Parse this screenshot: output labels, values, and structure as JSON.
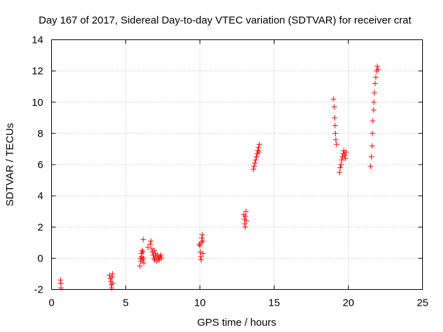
{
  "chart_data": {
    "type": "scatter",
    "title": "Day 167 of 2017, Sidereal Day-to-day VTEC variation (SDTVAR) for receiver crat",
    "xlabel": "GPS time / hours",
    "ylabel": "SDTVAR / TECUs",
    "xlim": [
      0,
      25
    ],
    "ylim": [
      -2,
      14
    ],
    "xticks": [
      0,
      5,
      10,
      15,
      20,
      25
    ],
    "yticks": [
      -2,
      0,
      2,
      4,
      6,
      8,
      10,
      12,
      14
    ],
    "xtick_labels": [
      "0",
      "5",
      "10",
      "15",
      "20",
      "25"
    ],
    "ytick_labels": [
      "-2",
      "0",
      "2",
      "4",
      "6",
      "8",
      "10",
      "12",
      "14"
    ],
    "grid": true,
    "marker": "+",
    "color": "#ff0000",
    "series": [
      {
        "name": "SDTVAR",
        "points": [
          [
            0.6,
            -1.4
          ],
          [
            0.62,
            -1.6
          ],
          [
            0.64,
            -1.9
          ],
          [
            3.9,
            -1.1
          ],
          [
            3.95,
            -1.3
          ],
          [
            4.0,
            -1.5
          ],
          [
            4.02,
            -1.7
          ],
          [
            4.05,
            -1.9
          ],
          [
            4.08,
            -1.2
          ],
          [
            4.1,
            -1.0
          ],
          [
            4.12,
            -1.6
          ],
          [
            5.95,
            -0.5
          ],
          [
            6.0,
            0.0
          ],
          [
            6.02,
            -0.2
          ],
          [
            6.05,
            0.3
          ],
          [
            6.07,
            0.1
          ],
          [
            6.1,
            0.5
          ],
          [
            6.12,
            -0.1
          ],
          [
            6.15,
            0.4
          ],
          [
            6.18,
            1.2
          ],
          [
            6.2,
            0.0
          ],
          [
            6.22,
            -0.3
          ],
          [
            6.5,
            0.7
          ],
          [
            6.65,
            0.9
          ],
          [
            6.7,
            1.1
          ],
          [
            6.75,
            0.6
          ],
          [
            6.8,
            0.4
          ],
          [
            6.85,
            0.2
          ],
          [
            6.9,
            0.0
          ],
          [
            6.92,
            0.5
          ],
          [
            6.95,
            -0.1
          ],
          [
            7.0,
            0.3
          ],
          [
            7.05,
            0.1
          ],
          [
            7.1,
            -0.2
          ],
          [
            7.15,
            0.2
          ],
          [
            7.2,
            0.0
          ],
          [
            7.25,
            -0.1
          ],
          [
            7.3,
            0.1
          ],
          [
            7.35,
            0.2
          ],
          [
            7.4,
            0.0
          ],
          [
            9.95,
            0.9
          ],
          [
            10.0,
            0.8
          ],
          [
            10.02,
            0.4
          ],
          [
            10.05,
            0.1
          ],
          [
            10.08,
            -0.1
          ],
          [
            10.1,
            1.0
          ],
          [
            10.12,
            1.3
          ],
          [
            10.15,
            1.5
          ],
          [
            10.18,
            1.1
          ],
          [
            10.2,
            0.3
          ],
          [
            12.95,
            2.8
          ],
          [
            13.0,
            2.5
          ],
          [
            13.02,
            2.2
          ],
          [
            13.05,
            2.0
          ],
          [
            13.07,
            2.7
          ],
          [
            13.1,
            3.0
          ],
          [
            13.12,
            2.4
          ],
          [
            13.6,
            5.7
          ],
          [
            13.65,
            5.9
          ],
          [
            13.7,
            6.1
          ],
          [
            13.75,
            6.3
          ],
          [
            13.8,
            6.5
          ],
          [
            13.85,
            6.7
          ],
          [
            13.9,
            6.9
          ],
          [
            13.95,
            7.1
          ],
          [
            14.0,
            7.3
          ],
          [
            13.98,
            6.8
          ],
          [
            19.0,
            10.2
          ],
          [
            19.05,
            9.7
          ],
          [
            19.08,
            9.0
          ],
          [
            19.1,
            8.5
          ],
          [
            19.12,
            8.0
          ],
          [
            19.15,
            7.6
          ],
          [
            19.2,
            7.3
          ],
          [
            19.4,
            5.5
          ],
          [
            19.45,
            5.8
          ],
          [
            19.5,
            6.0
          ],
          [
            19.55,
            6.3
          ],
          [
            19.6,
            6.5
          ],
          [
            19.65,
            6.7
          ],
          [
            19.7,
            6.9
          ],
          [
            19.75,
            6.6
          ],
          [
            19.8,
            6.4
          ],
          [
            19.85,
            6.8
          ],
          [
            21.5,
            5.9
          ],
          [
            21.55,
            6.5
          ],
          [
            21.6,
            7.2
          ],
          [
            21.62,
            8.0
          ],
          [
            21.65,
            8.8
          ],
          [
            21.7,
            9.5
          ],
          [
            21.72,
            10.0
          ],
          [
            21.75,
            10.6
          ],
          [
            21.8,
            11.2
          ],
          [
            21.85,
            11.6
          ],
          [
            21.9,
            12.0
          ],
          [
            21.95,
            12.3
          ],
          [
            22.0,
            12.1
          ]
        ]
      }
    ]
  }
}
